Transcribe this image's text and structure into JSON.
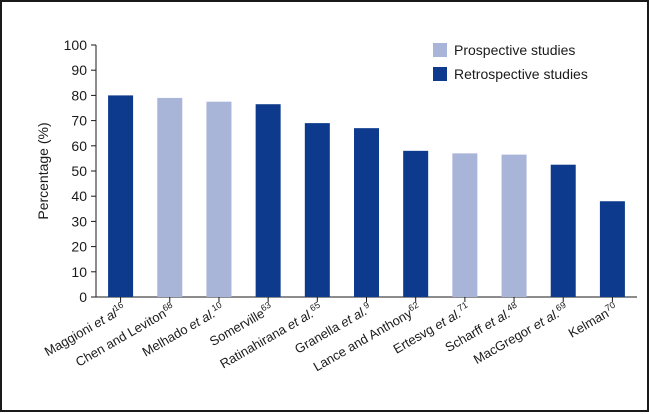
{
  "chart_data": {
    "type": "bar",
    "title": "",
    "xlabel": "",
    "ylabel": "Percentage (%)",
    "ylim": [
      0,
      100
    ],
    "yticks": [
      0,
      10,
      20,
      30,
      40,
      50,
      60,
      70,
      80,
      90,
      100
    ],
    "grid": false,
    "legend_position": "top-right",
    "series_legend": [
      {
        "name": "Prospective studies",
        "color": "#a9b4d9"
      },
      {
        "name": "Retrospective studies",
        "color": "#0d3a8c"
      }
    ],
    "bars": [
      {
        "name": "Maggioni",
        "italic": "et al",
        "ref": "16",
        "value": 80,
        "study": "Retrospective studies"
      },
      {
        "name": "Chen and Leviton",
        "italic": "",
        "ref": "68",
        "value": 79,
        "study": "Prospective studies"
      },
      {
        "name": "Melhado",
        "italic": "et al.",
        "ref": "10",
        "value": 77.5,
        "study": "Prospective studies"
      },
      {
        "name": "Somerville",
        "italic": "",
        "ref": "63",
        "value": 76.5,
        "study": "Retrospective studies"
      },
      {
        "name": "Ratinahirana",
        "italic": "et al.",
        "ref": "65",
        "value": 69,
        "study": "Retrospective studies"
      },
      {
        "name": "Granella",
        "italic": "et al.",
        "ref": "9",
        "value": 67,
        "study": "Retrospective studies"
      },
      {
        "name": "Lance and Anthony",
        "italic": "",
        "ref": "62",
        "value": 58,
        "study": "Retrospective studies"
      },
      {
        "name": "Ertesvg",
        "italic": "et al.",
        "ref": "71",
        "value": 57,
        "study": "Prospective studies"
      },
      {
        "name": "Scharff",
        "italic": "et al.",
        "ref": "48",
        "value": 56.5,
        "study": "Prospective studies"
      },
      {
        "name": "MacGregor",
        "italic": "et al.",
        "ref": "69",
        "value": 52.5,
        "study": "Retrospective studies"
      },
      {
        "name": "Kelman",
        "italic": "",
        "ref": "70",
        "value": 38,
        "study": "Retrospective studies"
      }
    ]
  }
}
